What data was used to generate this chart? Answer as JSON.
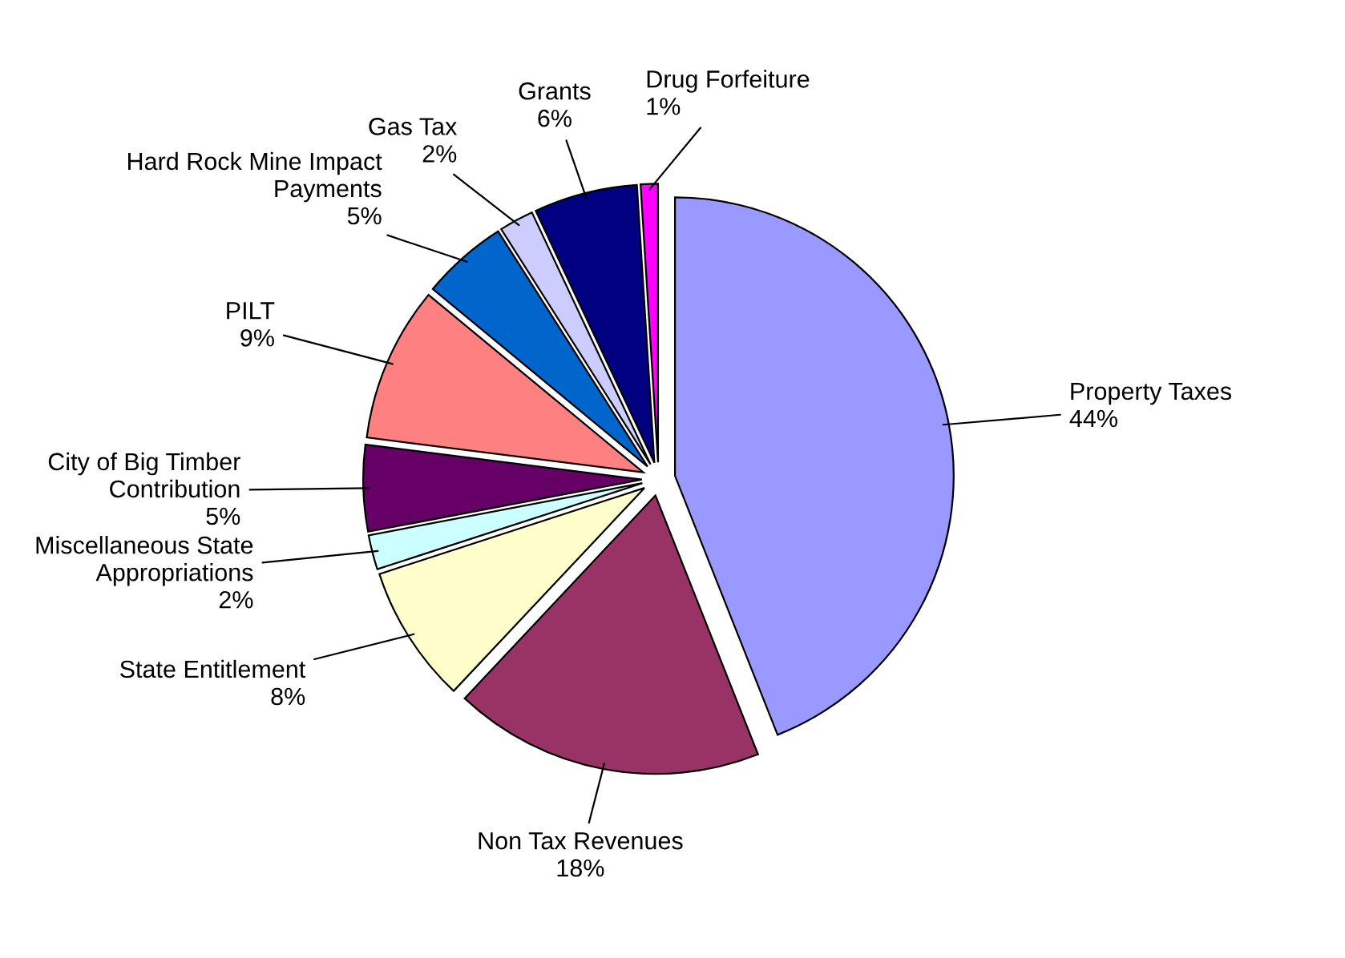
{
  "chart_data": {
    "type": "pie",
    "categories": [
      "Property Taxes",
      "Non Tax Revenues",
      "State Entitlement",
      "Miscellaneous State Appropriations",
      "City of Big Timber Contribution",
      "PILT",
      "Hard Rock Mine Impact Payments",
      "Gas Tax",
      "Grants",
      "Drug Forfeiture"
    ],
    "values": [
      44,
      18,
      8,
      2,
      5,
      9,
      5,
      2,
      6,
      1
    ],
    "colors": [
      "#9999ff",
      "#993366",
      "#ffffcc",
      "#ccffff",
      "#660066",
      "#ff8080",
      "#0066cc",
      "#ccccff",
      "#000080",
      "#ff00ff"
    ],
    "value_labels": [
      "44%",
      "18%",
      "8%",
      "2%",
      "5%",
      "9%",
      "5%",
      "2%",
      "6%",
      "1%"
    ]
  }
}
